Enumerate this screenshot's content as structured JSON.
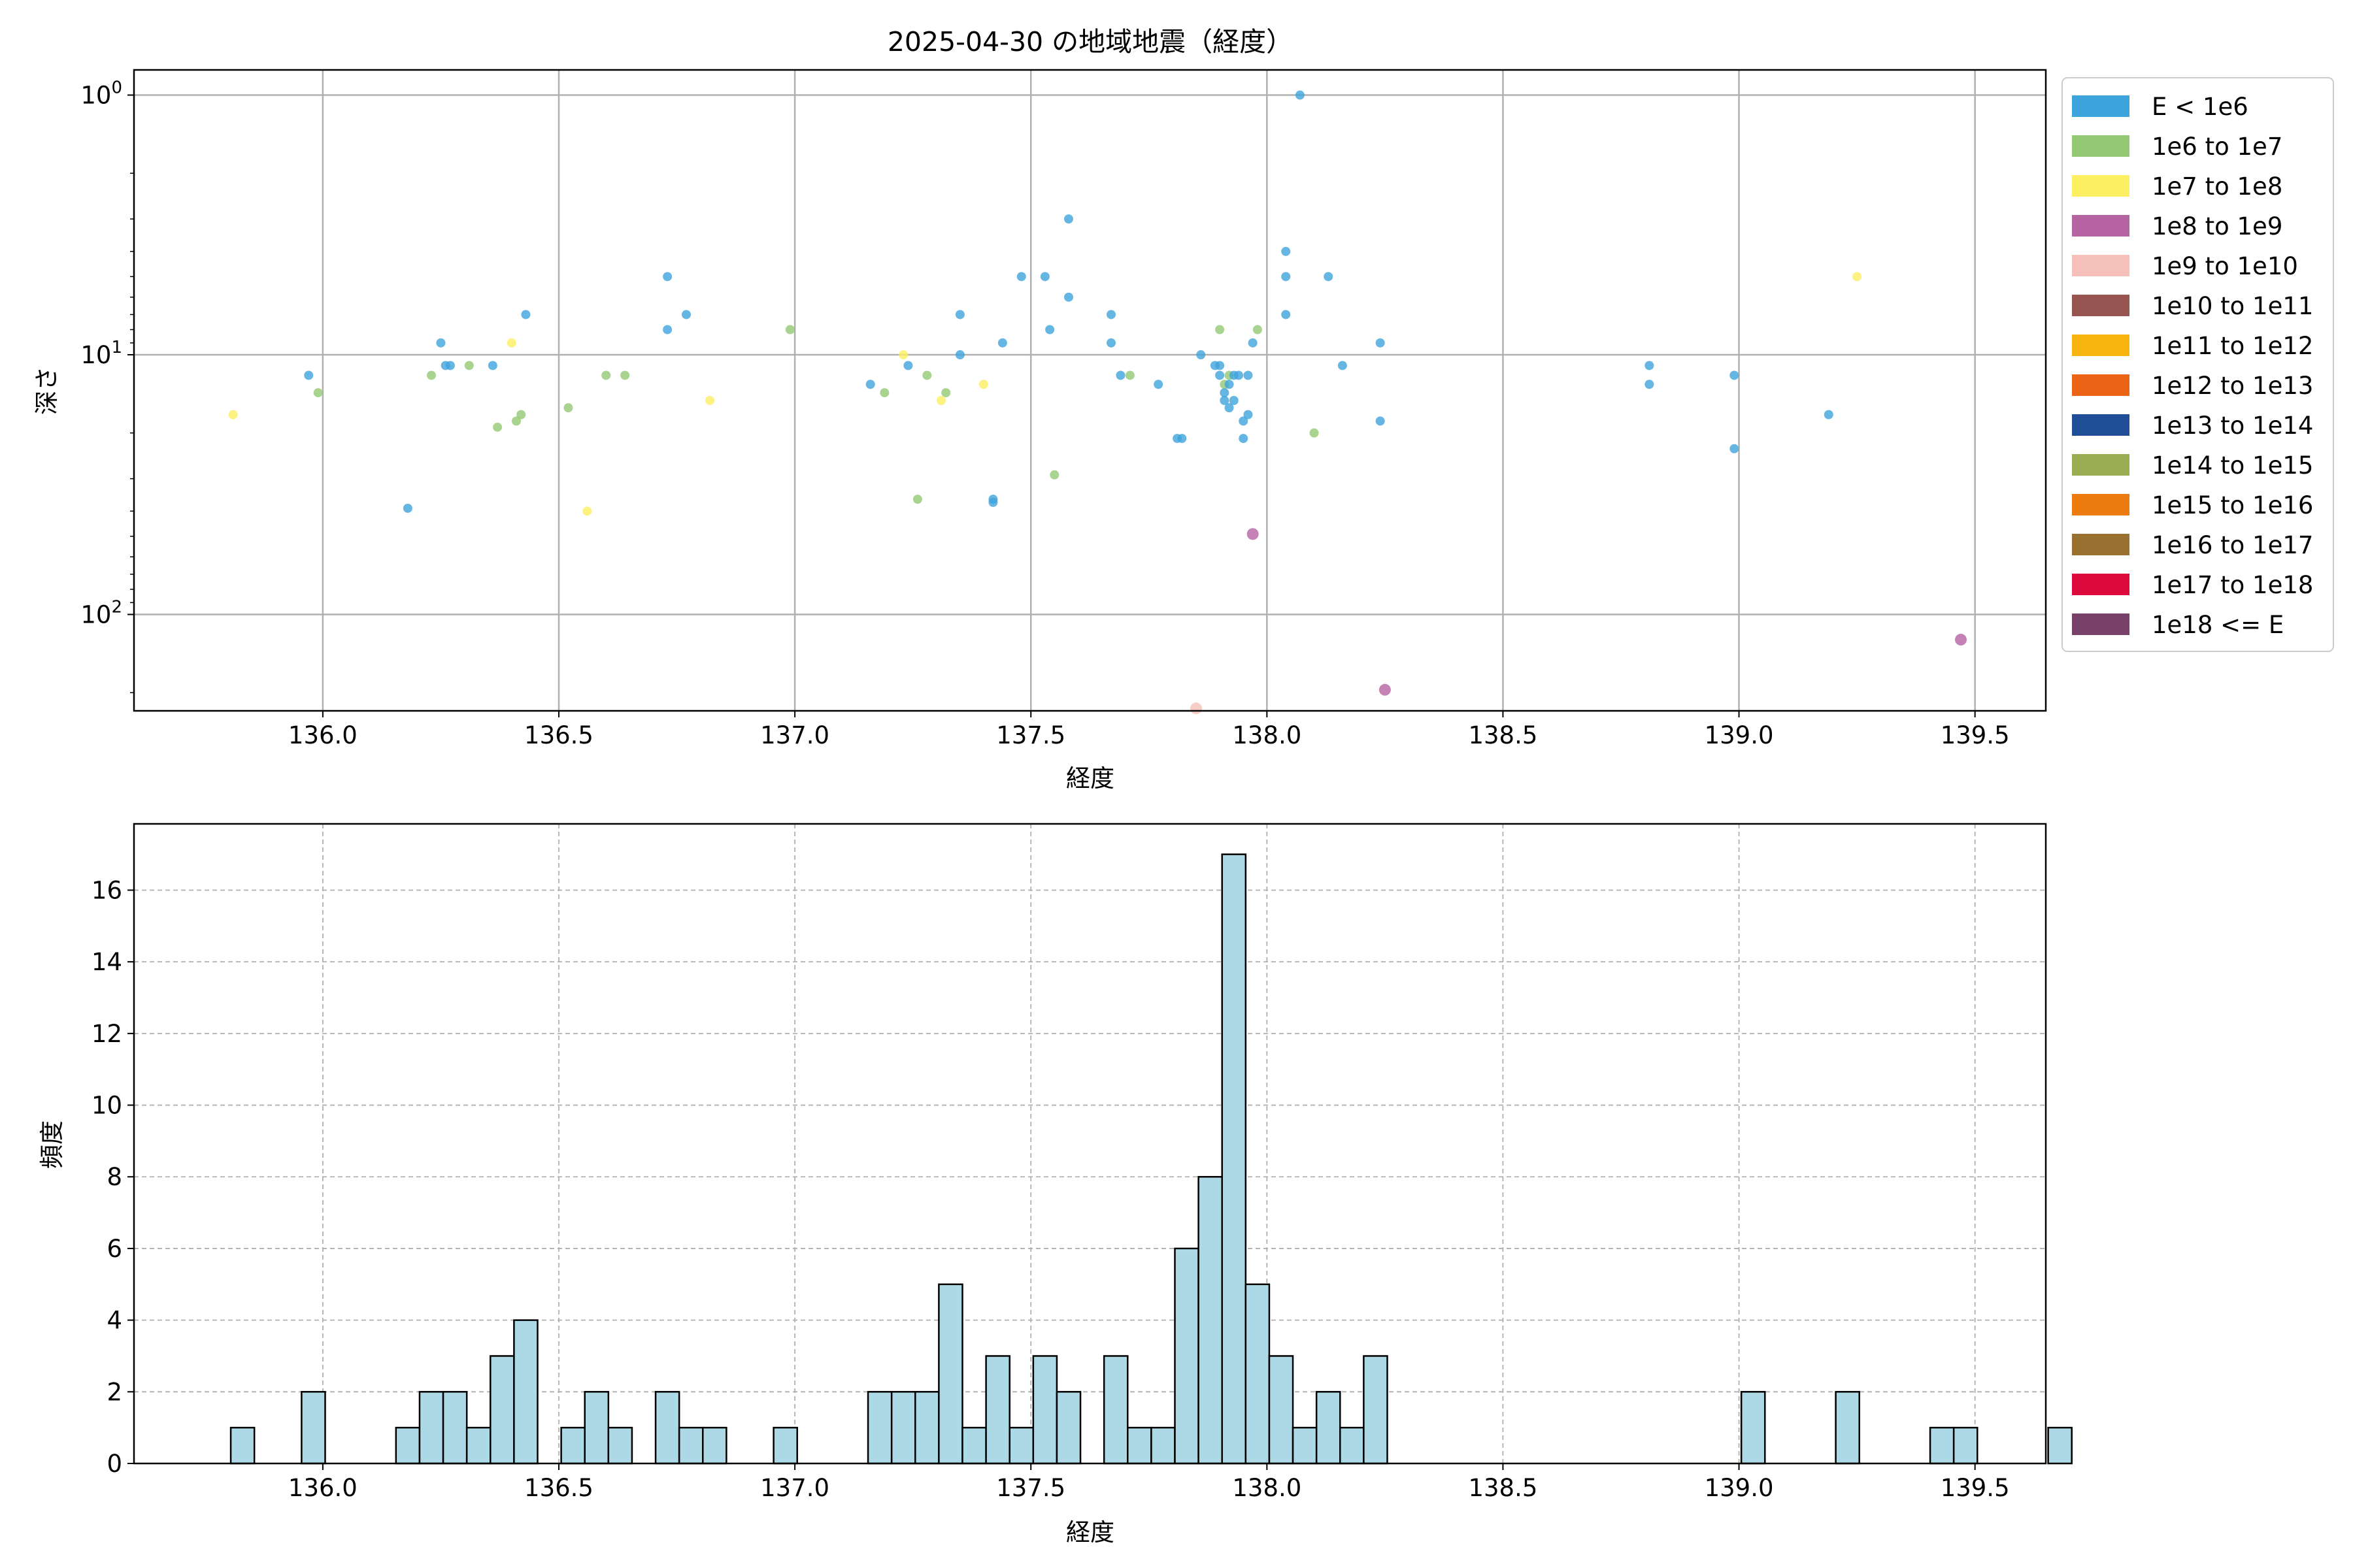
{
  "chart_data": [
    {
      "type": "scatter",
      "title": "2025-04-30 の地域地震（経度）",
      "xlabel": "経度",
      "ylabel": "深さ",
      "xlim": [
        135.6,
        139.65
      ],
      "ylim": [
        235,
        0.8
      ],
      "yscale": "log",
      "y_inverted": true,
      "grid": true,
      "x_ticks": [
        "136.0",
        "136.5",
        "137.0",
        "137.5",
        "138.0",
        "138.5",
        "139.0",
        "139.5"
      ],
      "y_ticks": [
        {
          "value": 1,
          "base": "10",
          "exp": "0"
        },
        {
          "value": 10,
          "base": "10",
          "exp": "1"
        },
        {
          "value": 100,
          "base": "10",
          "exp": "2"
        }
      ],
      "legend": {
        "placement": "outside-right",
        "entries": [
          {
            "label": "E < 1e6",
            "color": "#3ea4dc"
          },
          {
            "label": "1e6 to 1e7",
            "color": "#93c973"
          },
          {
            "label": "1e7 to 1e8",
            "color": "#fcef62"
          },
          {
            "label": "1e8 to 1e9",
            "color": "#b663a2"
          },
          {
            "label": "1e9 to 1e10",
            "color": "#f6c0ba"
          },
          {
            "label": "1e10 to 1e11",
            "color": "#985450"
          },
          {
            "label": "1e11 to 1e12",
            "color": "#f8b50f"
          },
          {
            "label": "1e12 to 1e13",
            "color": "#eb6416"
          },
          {
            "label": "1e13 to 1e14",
            "color": "#1f4e96"
          },
          {
            "label": "1e14 to 1e15",
            "color": "#9bad53"
          },
          {
            "label": "1e15 to 1e16",
            "color": "#ec7b10"
          },
          {
            "label": "1e16 to 1e17",
            "color": "#99702f"
          },
          {
            "label": "1e17 to 1e18",
            "color": "#dc0a3c"
          },
          {
            "label": "1e18 <= E",
            "color": "#784169"
          }
        ]
      },
      "points": [
        {
          "x": 135.81,
          "y": 17,
          "c": 2
        },
        {
          "x": 135.97,
          "y": 12,
          "c": 0
        },
        {
          "x": 135.99,
          "y": 14,
          "c": 1
        },
        {
          "x": 136.18,
          "y": 39,
          "c": 0
        },
        {
          "x": 136.23,
          "y": 12,
          "c": 1
        },
        {
          "x": 136.25,
          "y": 9,
          "c": 0
        },
        {
          "x": 136.26,
          "y": 11,
          "c": 0
        },
        {
          "x": 136.27,
          "y": 11,
          "c": 0
        },
        {
          "x": 136.31,
          "y": 11,
          "c": 1
        },
        {
          "x": 136.36,
          "y": 11,
          "c": 0
        },
        {
          "x": 136.37,
          "y": 19,
          "c": 1
        },
        {
          "x": 136.4,
          "y": 9,
          "c": 2
        },
        {
          "x": 136.41,
          "y": 18,
          "c": 1
        },
        {
          "x": 136.42,
          "y": 17,
          "c": 1
        },
        {
          "x": 136.43,
          "y": 7,
          "c": 0
        },
        {
          "x": 136.52,
          "y": 16,
          "c": 1
        },
        {
          "x": 136.56,
          "y": 40,
          "c": 2
        },
        {
          "x": 136.6,
          "y": 12,
          "c": 1
        },
        {
          "x": 136.64,
          "y": 12,
          "c": 1
        },
        {
          "x": 136.73,
          "y": 5,
          "c": 0
        },
        {
          "x": 136.73,
          "y": 8,
          "c": 0
        },
        {
          "x": 136.77,
          "y": 7,
          "c": 0
        },
        {
          "x": 136.82,
          "y": 15,
          "c": 2
        },
        {
          "x": 136.99,
          "y": 8,
          "c": 1
        },
        {
          "x": 137.16,
          "y": 13,
          "c": 0
        },
        {
          "x": 137.19,
          "y": 14,
          "c": 1
        },
        {
          "x": 137.23,
          "y": 10,
          "c": 2
        },
        {
          "x": 137.24,
          "y": 11,
          "c": 0
        },
        {
          "x": 137.26,
          "y": 36,
          "c": 1
        },
        {
          "x": 137.28,
          "y": 12,
          "c": 1
        },
        {
          "x": 137.31,
          "y": 15,
          "c": 2
        },
        {
          "x": 137.32,
          "y": 14,
          "c": 1
        },
        {
          "x": 137.35,
          "y": 7,
          "c": 0
        },
        {
          "x": 137.35,
          "y": 10,
          "c": 0
        },
        {
          "x": 137.4,
          "y": 13,
          "c": 2
        },
        {
          "x": 137.42,
          "y": 36,
          "c": 0
        },
        {
          "x": 137.42,
          "y": 37,
          "c": 0
        },
        {
          "x": 137.44,
          "y": 9,
          "c": 0
        },
        {
          "x": 137.48,
          "y": 5,
          "c": 0
        },
        {
          "x": 137.53,
          "y": 5,
          "c": 0
        },
        {
          "x": 137.54,
          "y": 8,
          "c": 0
        },
        {
          "x": 137.55,
          "y": 29,
          "c": 1
        },
        {
          "x": 137.58,
          "y": 3,
          "c": 0
        },
        {
          "x": 137.58,
          "y": 6,
          "c": 0
        },
        {
          "x": 137.67,
          "y": 7,
          "c": 0
        },
        {
          "x": 137.67,
          "y": 9,
          "c": 0
        },
        {
          "x": 137.69,
          "y": 12,
          "c": 0
        },
        {
          "x": 137.71,
          "y": 12,
          "c": 1
        },
        {
          "x": 137.77,
          "y": 13,
          "c": 0
        },
        {
          "x": 137.81,
          "y": 21,
          "c": 0
        },
        {
          "x": 137.82,
          "y": 21,
          "c": 0
        },
        {
          "x": 137.85,
          "y": 230,
          "c": 4
        },
        {
          "x": 137.86,
          "y": 10,
          "c": 0
        },
        {
          "x": 137.89,
          "y": 11,
          "c": 0
        },
        {
          "x": 137.9,
          "y": 11,
          "c": 0
        },
        {
          "x": 137.9,
          "y": 8,
          "c": 1
        },
        {
          "x": 137.9,
          "y": 12,
          "c": 0
        },
        {
          "x": 137.91,
          "y": 13,
          "c": 1
        },
        {
          "x": 137.91,
          "y": 14,
          "c": 0
        },
        {
          "x": 137.91,
          "y": 15,
          "c": 0
        },
        {
          "x": 137.92,
          "y": 12,
          "c": 1
        },
        {
          "x": 137.92,
          "y": 13,
          "c": 0
        },
        {
          "x": 137.92,
          "y": 16,
          "c": 0
        },
        {
          "x": 137.93,
          "y": 15,
          "c": 0
        },
        {
          "x": 137.93,
          "y": 12,
          "c": 0
        },
        {
          "x": 137.94,
          "y": 12,
          "c": 0
        },
        {
          "x": 137.95,
          "y": 21,
          "c": 0
        },
        {
          "x": 137.95,
          "y": 18,
          "c": 0
        },
        {
          "x": 137.96,
          "y": 17,
          "c": 0
        },
        {
          "x": 137.96,
          "y": 12,
          "c": 0
        },
        {
          "x": 137.97,
          "y": 49,
          "c": 3
        },
        {
          "x": 137.97,
          "y": 9,
          "c": 0
        },
        {
          "x": 137.98,
          "y": 8,
          "c": 1
        },
        {
          "x": 138.04,
          "y": 4,
          "c": 0
        },
        {
          "x": 138.04,
          "y": 5,
          "c": 0
        },
        {
          "x": 138.04,
          "y": 7,
          "c": 0
        },
        {
          "x": 138.07,
          "y": 1,
          "c": 0
        },
        {
          "x": 138.1,
          "y": 20,
          "c": 1
        },
        {
          "x": 138.13,
          "y": 5,
          "c": 0
        },
        {
          "x": 138.16,
          "y": 11,
          "c": 0
        },
        {
          "x": 138.24,
          "y": 9,
          "c": 0
        },
        {
          "x": 138.24,
          "y": 18,
          "c": 0
        },
        {
          "x": 138.25,
          "y": 195,
          "c": 3
        },
        {
          "x": 138.81,
          "y": 11,
          "c": 0
        },
        {
          "x": 138.81,
          "y": 13,
          "c": 0
        },
        {
          "x": 138.99,
          "y": 12,
          "c": 0
        },
        {
          "x": 138.99,
          "y": 23,
          "c": 0
        },
        {
          "x": 139.19,
          "y": 17,
          "c": 0
        },
        {
          "x": 139.25,
          "y": 5,
          "c": 2
        },
        {
          "x": 139.47,
          "y": 125,
          "c": 3
        }
      ]
    },
    {
      "type": "bar",
      "title": "",
      "xlabel": "経度",
      "ylabel": "頻度",
      "xlim": [
        135.6,
        139.65
      ],
      "ylim": [
        0,
        17.85
      ],
      "grid": true,
      "bar_color": "#add8e6",
      "edge_color": "#000000",
      "x_ticks": [
        "136.0",
        "136.5",
        "137.0",
        "137.5",
        "138.0",
        "138.5",
        "139.0",
        "139.5"
      ],
      "y_ticks": [
        "0",
        "2",
        "4",
        "6",
        "8",
        "10",
        "12",
        "14",
        "16"
      ],
      "bin_start": 135.805,
      "bin_width": 0.05,
      "values": [
        1,
        0,
        0,
        2,
        0,
        0,
        0,
        1,
        2,
        2,
        1,
        3,
        4,
        0,
        1,
        2,
        1,
        0,
        2,
        1,
        1,
        0,
        0,
        1,
        0,
        0,
        0,
        2,
        2,
        2,
        5,
        1,
        3,
        1,
        3,
        2,
        0,
        3,
        1,
        1,
        6,
        8,
        17,
        5,
        3,
        1,
        2,
        1,
        3,
        0,
        0,
        0,
        0,
        0,
        0,
        0,
        0,
        0,
        0,
        0,
        0,
        0,
        0,
        0,
        2,
        0,
        0,
        0,
        2,
        0,
        0,
        0,
        1,
        1,
        0,
        0,
        0,
        1
      ]
    }
  ]
}
